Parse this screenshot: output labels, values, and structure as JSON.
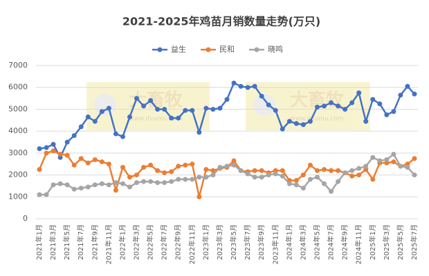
{
  "chart_data": {
    "type": "line",
    "title": "2021-2025年鸡苗月销数量走势(万只)",
    "watermark": [
      "大畜牧",
      "www.dxumu.com"
    ],
    "categories": [
      "2021年1月",
      null,
      "2021年3月",
      null,
      "2021年5月",
      null,
      "2021年7月",
      null,
      "2021年9月",
      null,
      "2021年11月",
      null,
      "2022年1月",
      null,
      "2022年3月",
      null,
      "2022年5月",
      null,
      "2022年7月",
      null,
      "2022年9月",
      null,
      "2022年11月",
      null,
      "2023年1月",
      null,
      "2023年3月",
      null,
      "2023年5月",
      null,
      "2023年7月",
      null,
      "2023年9月",
      null,
      "2023年11月",
      null,
      "2024年1月",
      null,
      "2024年3月",
      null,
      "2024年5月",
      null,
      "2024年7月",
      null,
      "2024年9月",
      null,
      "2024年11月",
      null,
      "2025年1月",
      null,
      "2025年3月",
      null,
      "2025年5月",
      null,
      "2025年7月"
    ],
    "series": [
      {
        "name": "益生",
        "color": "#4472c4",
        "values": [
          3200,
          3250,
          3400,
          2800,
          3500,
          3800,
          4200,
          4650,
          4450,
          4900,
          5050,
          3880,
          3750,
          4650,
          5500,
          5150,
          5400,
          5000,
          5000,
          4600,
          4600,
          4950,
          4950,
          3950,
          5050,
          5000,
          5050,
          5450,
          6200,
          6050,
          6000,
          6050,
          5600,
          5200,
          4950,
          4100,
          4450,
          4350,
          4300,
          4450,
          5100,
          5150,
          5300,
          5150,
          5000,
          5300,
          5750,
          4450,
          5450,
          5250,
          4750,
          4900,
          5650,
          6050,
          5700
        ]
      },
      {
        "name": "民和",
        "color": "#ed7d31",
        "values": [
          2250,
          3000,
          3100,
          2950,
          2900,
          2450,
          2750,
          2550,
          2700,
          2600,
          2500,
          1300,
          2350,
          1900,
          2000,
          2350,
          2450,
          2200,
          2100,
          2150,
          2400,
          2450,
          2500,
          1000,
          2250,
          2200,
          2300,
          2350,
          2650,
          2200,
          2150,
          2200,
          2200,
          2100,
          2200,
          2200,
          1750,
          1750,
          2000,
          2450,
          2200,
          2250,
          2200,
          2200,
          2100,
          1950,
          2000,
          2250,
          1800,
          2550,
          2550,
          2600,
          2400,
          2500,
          2750
        ]
      },
      {
        "name": "晓鸣",
        "color": "#a5a5a5",
        "values": [
          1100,
          1100,
          1550,
          1600,
          1550,
          1350,
          1400,
          1450,
          1550,
          1600,
          1550,
          1650,
          1600,
          1450,
          1650,
          1700,
          1700,
          1650,
          1650,
          1700,
          1800,
          1800,
          1800,
          1900,
          1900,
          2000,
          2350,
          2400,
          2450,
          2200,
          2050,
          1900,
          1900,
          2000,
          2050,
          1950,
          1600,
          1550,
          1400,
          1800,
          1900,
          1600,
          1250,
          1700,
          2100,
          2200,
          2300,
          2400,
          2800,
          2650,
          2700,
          2950,
          2400,
          2350,
          2000
        ]
      }
    ],
    "ylim": [
      0,
      7000
    ],
    "yticks": [
      0,
      1000,
      2000,
      3000,
      4000,
      5000,
      6000,
      7000
    ],
    "grid": true,
    "legend": "top"
  }
}
